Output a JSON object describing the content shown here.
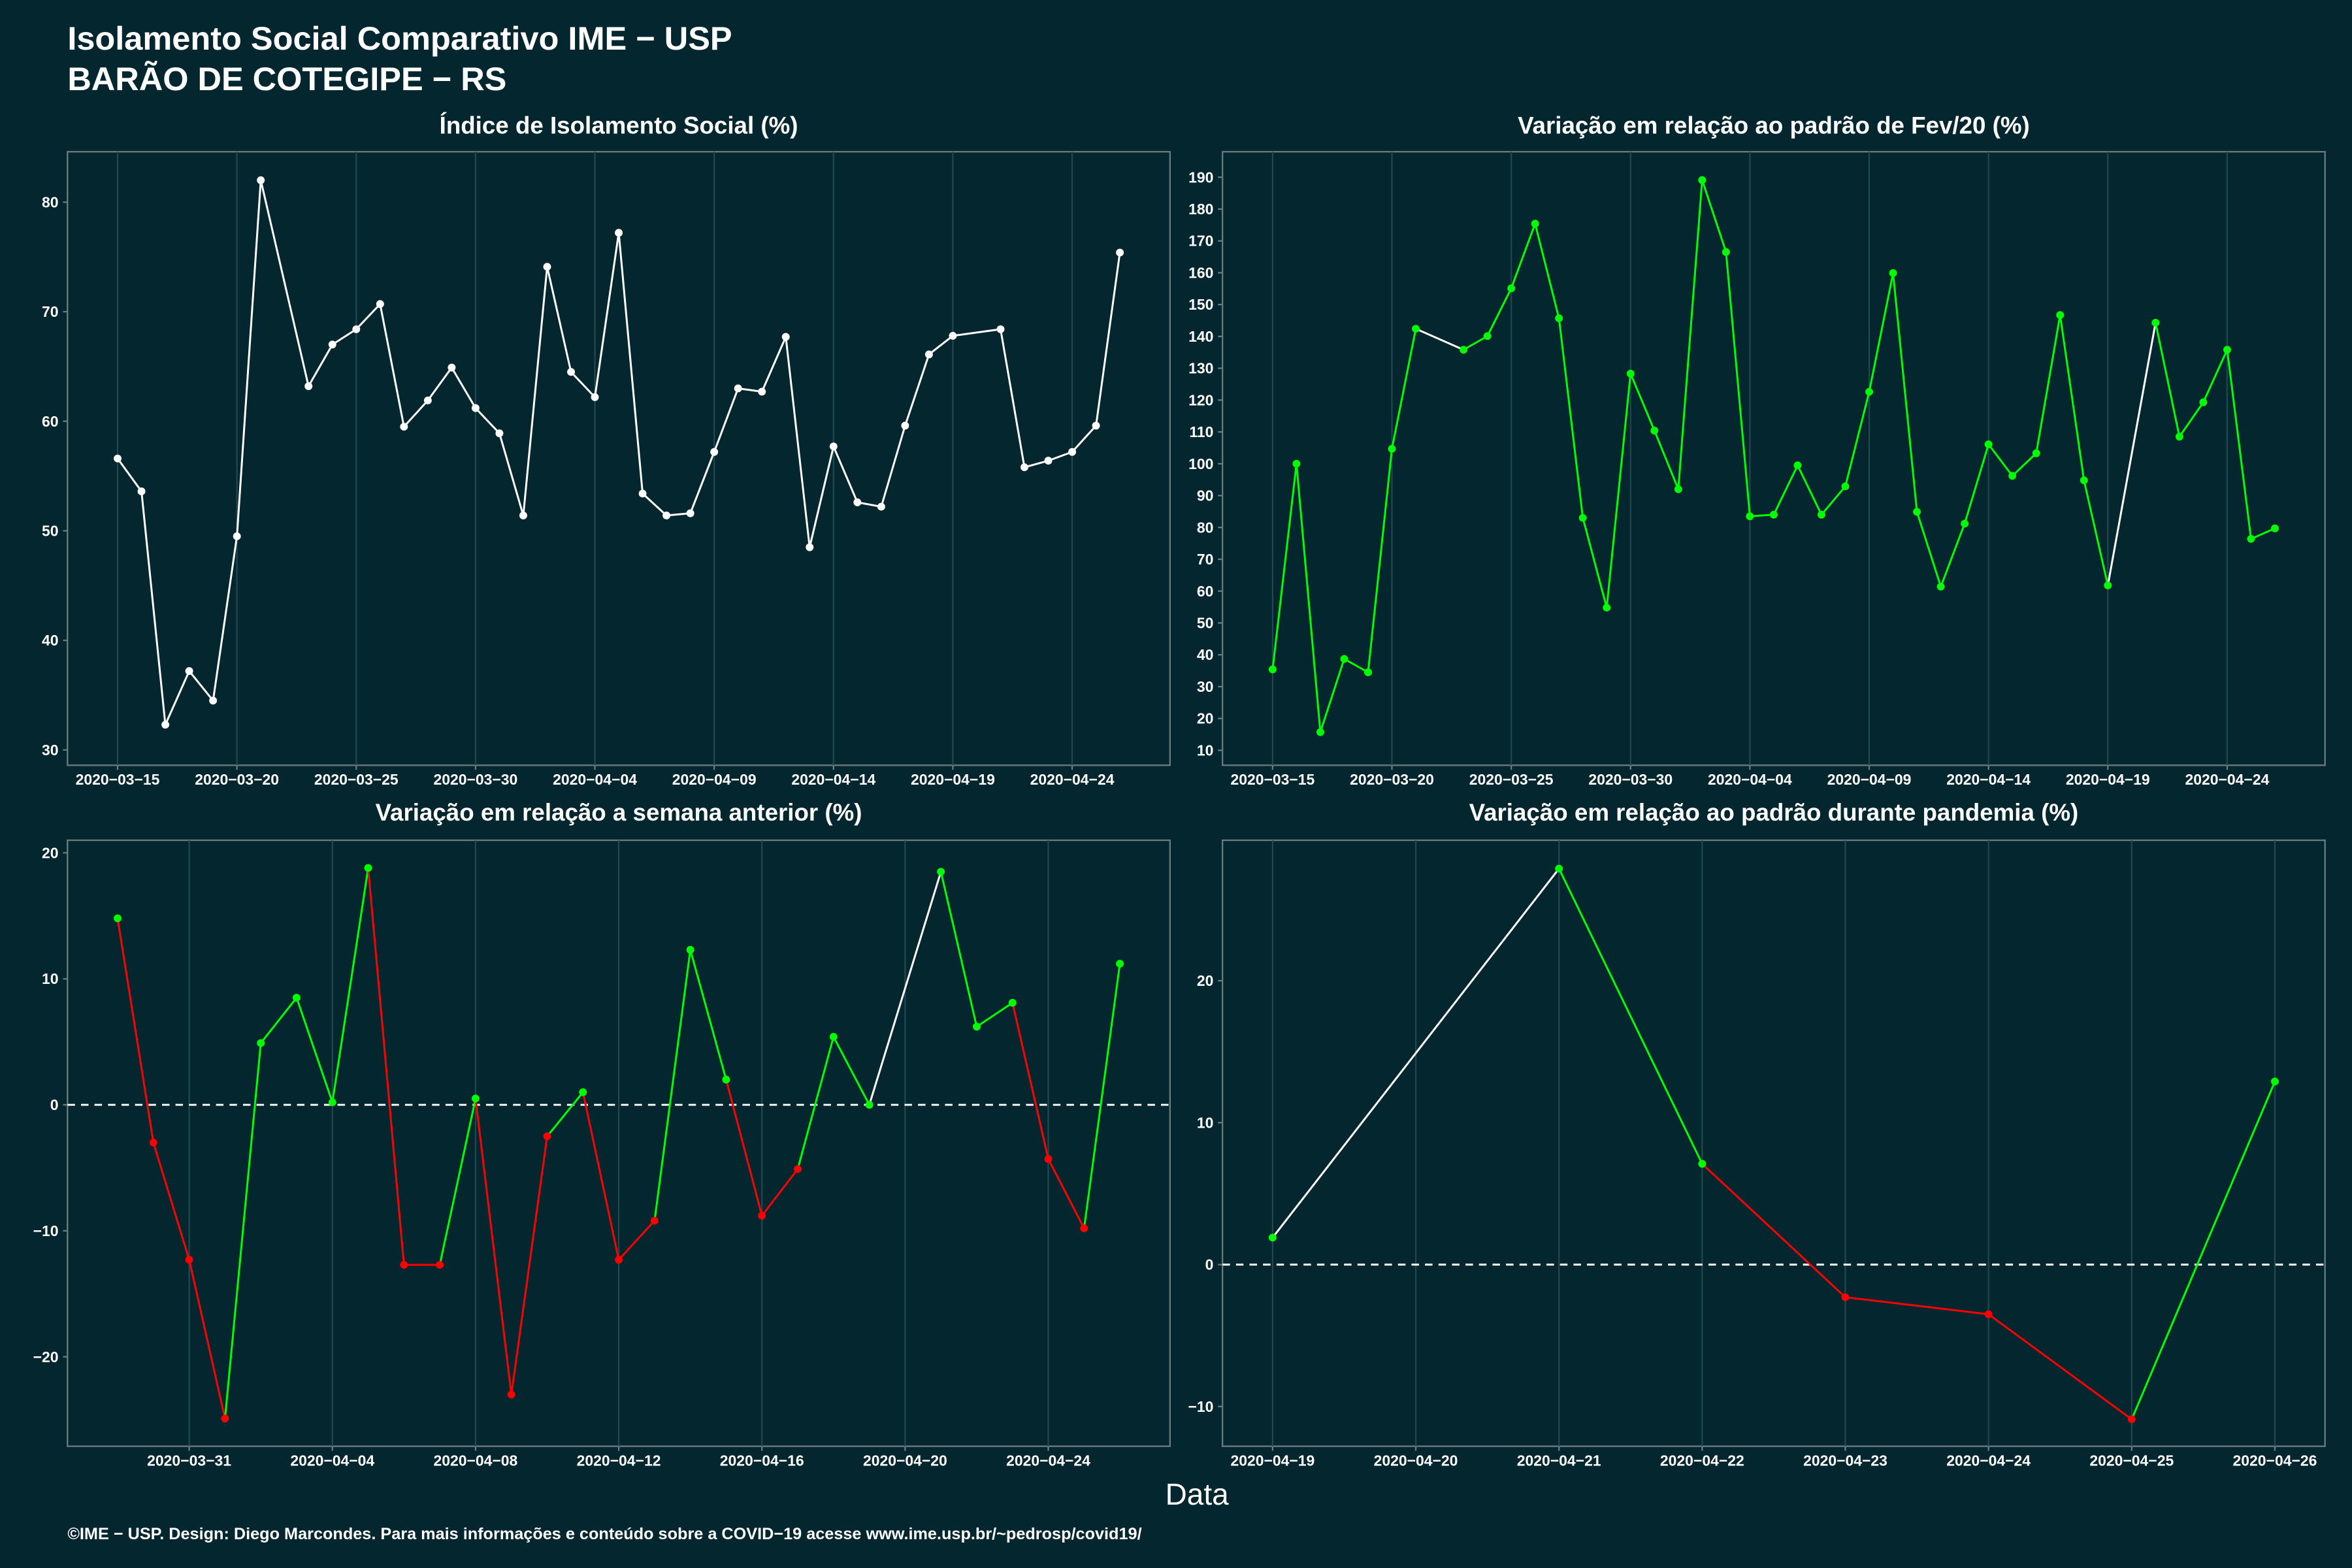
{
  "title": "Isolamento Social Comparativo IME − USP",
  "subtitle": "BARÃO DE COTEGIPE − RS",
  "x_label": "Data",
  "footer": "©IME − USP. Design: Diego Marcondes. Para mais informações e conteúdo sobre a COVID−19 acesse www.ime.usp.br/~pedrosp/covid19/",
  "chart_data": [
    {
      "type": "line",
      "title": "Índice de Isolamento Social (%)",
      "color": "#ffffff",
      "grid": "x",
      "x": [
        "2020-03-15",
        "2020-03-16",
        "2020-03-17",
        "2020-03-18",
        "2020-03-19",
        "2020-03-20",
        "2020-03-21",
        "2020-03-23",
        "2020-03-24",
        "2020-03-25",
        "2020-03-26",
        "2020-03-27",
        "2020-03-28",
        "2020-03-29",
        "2020-03-30",
        "2020-03-31",
        "2020-04-01",
        "2020-04-02",
        "2020-04-03",
        "2020-04-04",
        "2020-04-05",
        "2020-04-06",
        "2020-04-07",
        "2020-04-08",
        "2020-04-09",
        "2020-04-10",
        "2020-04-11",
        "2020-04-12",
        "2020-04-13",
        "2020-04-14",
        "2020-04-15",
        "2020-04-16",
        "2020-04-17",
        "2020-04-18",
        "2020-04-19",
        "2020-04-21",
        "2020-04-22",
        "2020-04-23",
        "2020-04-24",
        "2020-04-25",
        "2020-04-26"
      ],
      "values": [
        56.6,
        53.6,
        32.3,
        37.2,
        34.5,
        49.5,
        82.0,
        63.2,
        67.0,
        68.4,
        70.7,
        59.5,
        61.9,
        64.9,
        61.2,
        58.9,
        51.4,
        74.1,
        64.5,
        62.2,
        77.2,
        53.4,
        51.4,
        51.6,
        57.2,
        63.0,
        62.7,
        67.7,
        48.5,
        57.7,
        52.6,
        52.2,
        59.6,
        66.1,
        67.8,
        68.4,
        55.8,
        56.4,
        57.2,
        59.6,
        75.4
      ],
      "ylim": [
        28.6,
        84.6
      ],
      "yticks": [
        30,
        40,
        50,
        60,
        70,
        80
      ],
      "xticks": [
        {
          "value": "2020-03-15",
          "label": "2020−03−15"
        },
        {
          "value": "2020-03-20",
          "label": "2020−03−20"
        },
        {
          "value": "2020-03-25",
          "label": "2020−03−25"
        },
        {
          "value": "2020-03-30",
          "label": "2020−03−30"
        },
        {
          "value": "2020-04-04",
          "label": "2020−04−04"
        },
        {
          "value": "2020-04-09",
          "label": "2020−04−09"
        },
        {
          "value": "2020-04-14",
          "label": "2020−04−14"
        },
        {
          "value": "2020-04-19",
          "label": "2020−04−19"
        },
        {
          "value": "2020-04-24",
          "label": "2020−04−24"
        }
      ]
    },
    {
      "type": "line",
      "title": "Variação em relação ao padrão de Fev/20 (%)",
      "color_positive": "#00ff00",
      "color_negative": "#ff0000",
      "gap_color": "#ffffff",
      "grid": "x",
      "x": [
        "2020-03-15",
        "2020-03-16",
        "2020-03-17",
        "2020-03-18",
        "2020-03-19",
        "2020-03-20",
        "2020-03-21",
        "2020-03-23",
        "2020-03-24",
        "2020-03-25",
        "2020-03-26",
        "2020-03-27",
        "2020-03-28",
        "2020-03-29",
        "2020-03-30",
        "2020-03-31",
        "2020-04-01",
        "2020-04-02",
        "2020-04-03",
        "2020-04-04",
        "2020-04-05",
        "2020-04-06",
        "2020-04-07",
        "2020-04-08",
        "2020-04-09",
        "2020-04-10",
        "2020-04-11",
        "2020-04-12",
        "2020-04-13",
        "2020-04-14",
        "2020-04-15",
        "2020-04-16",
        "2020-04-17",
        "2020-04-18",
        "2020-04-19",
        "2020-04-21",
        "2020-04-22",
        "2020-04-23",
        "2020-04-24",
        "2020-04-25",
        "2020-04-26"
      ],
      "values": [
        35.4,
        100,
        15.7,
        38.7,
        34.5,
        104.7,
        142.4,
        135.8,
        140.1,
        155.1,
        175.4,
        145.7,
        83.0,
        54.8,
        128.3,
        110.4,
        92.0,
        189.1,
        166.5,
        83.5,
        84.0,
        99.5,
        84.0,
        92.9,
        122.6,
        159.9,
        84.9,
        61.4,
        81.2,
        106.1,
        96.2,
        103.3,
        146.7,
        94.8,
        61.8,
        144.3,
        108.5,
        119.3,
        135.8,
        76.4,
        79.7
      ],
      "ylim": [
        5.3,
        198
      ],
      "yticks": [
        10,
        20,
        30,
        40,
        50,
        60,
        70,
        80,
        90,
        100,
        110,
        120,
        130,
        140,
        150,
        160,
        170,
        180,
        190
      ],
      "xticks": [
        {
          "value": "2020-03-15",
          "label": "2020−03−15"
        },
        {
          "value": "2020-03-20",
          "label": "2020−03−20"
        },
        {
          "value": "2020-03-25",
          "label": "2020−03−25"
        },
        {
          "value": "2020-03-30",
          "label": "2020−03−30"
        },
        {
          "value": "2020-04-04",
          "label": "2020−04−04"
        },
        {
          "value": "2020-04-09",
          "label": "2020−04−09"
        },
        {
          "value": "2020-04-14",
          "label": "2020−04−14"
        },
        {
          "value": "2020-04-19",
          "label": "2020−04−19"
        },
        {
          "value": "2020-04-24",
          "label": "2020−04−24"
        }
      ]
    },
    {
      "type": "line",
      "title": "Variação em relação a semana anterior (%)",
      "color_positive": "#00ff00",
      "color_negative": "#ff0000",
      "gap_color": "#ffffff",
      "grid": "x",
      "zero_line": true,
      "x": [
        "2020-03-29",
        "2020-03-30",
        "2020-03-31",
        "2020-04-01",
        "2020-04-02",
        "2020-04-03",
        "2020-04-04",
        "2020-04-05",
        "2020-04-06",
        "2020-04-07",
        "2020-04-08",
        "2020-04-09",
        "2020-04-10",
        "2020-04-11",
        "2020-04-12",
        "2020-04-13",
        "2020-04-14",
        "2020-04-15",
        "2020-04-16",
        "2020-04-17",
        "2020-04-18",
        "2020-04-19",
        "2020-04-21",
        "2020-04-22",
        "2020-04-23",
        "2020-04-24",
        "2020-04-25",
        "2020-04-26"
      ],
      "values": [
        14.8,
        -3.0,
        -12.3,
        -24.9,
        4.9,
        8.5,
        0.2,
        18.8,
        -12.7,
        -12.7,
        0.5,
        -23.0,
        -2.5,
        1.0,
        -12.3,
        -9.2,
        12.3,
        2.0,
        -8.8,
        -5.1,
        5.4,
        0.0,
        18.5,
        6.2,
        8.1,
        -4.3,
        -9.8,
        11.2
      ],
      "ylim": [
        -27.1,
        21
      ],
      "yticks": [
        {
          "value": -20,
          "label": "−20"
        },
        {
          "value": -10,
          "label": "−10"
        },
        0,
        10,
        20
      ],
      "xticks": [
        {
          "value": "2020-03-31",
          "label": "2020−03−31"
        },
        {
          "value": "2020-04-04",
          "label": "2020−04−04"
        },
        {
          "value": "2020-04-08",
          "label": "2020−04−08"
        },
        {
          "value": "2020-04-12",
          "label": "2020−04−12"
        },
        {
          "value": "2020-04-16",
          "label": "2020−04−16"
        },
        {
          "value": "2020-04-20",
          "label": "2020−04−20"
        },
        {
          "value": "2020-04-24",
          "label": "2020−04−24"
        }
      ]
    },
    {
      "type": "line",
      "title": "Variação em relação ao padrão durante pandemia (%)",
      "color_positive": "#00ff00",
      "color_negative": "#ff0000",
      "gap_color": "#ffffff",
      "grid": "x",
      "zero_line": true,
      "x": [
        "2020-04-19",
        "2020-04-21",
        "2020-04-22",
        "2020-04-23",
        "2020-04-24",
        "2020-04-25",
        "2020-04-26"
      ],
      "values": [
        1.9,
        27.9,
        7.1,
        -2.3,
        -3.5,
        -10.9,
        12.9
      ],
      "ylim": [
        -12.8,
        29.9
      ],
      "yticks": [
        {
          "value": -10,
          "label": "−10"
        },
        0,
        10,
        20
      ],
      "xticks": [
        {
          "value": "2020-04-19",
          "label": "2020−04−19"
        },
        {
          "value": "2020-04-20",
          "label": "2020−04−20"
        },
        {
          "value": "2020-04-21",
          "label": "2020−04−21"
        },
        {
          "value": "2020-04-22",
          "label": "2020−04−22"
        },
        {
          "value": "2020-04-23",
          "label": "2020−04−23"
        },
        {
          "value": "2020-04-24",
          "label": "2020−04−24"
        },
        {
          "value": "2020-04-25",
          "label": "2020−04−25"
        },
        {
          "value": "2020-04-26",
          "label": "2020−04−26"
        }
      ]
    }
  ]
}
